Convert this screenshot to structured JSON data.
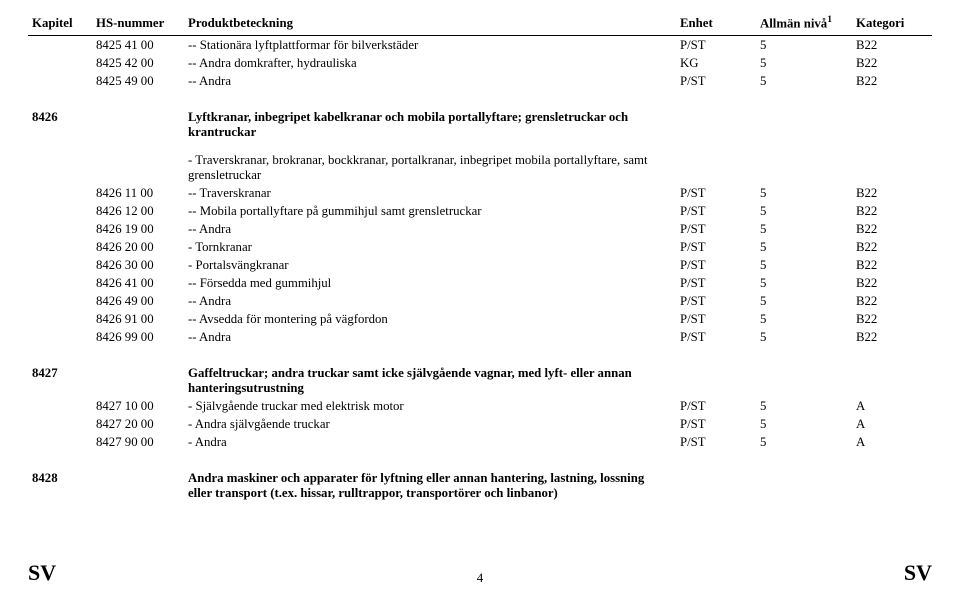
{
  "header": {
    "col1": "Kapitel",
    "col2": "HS-nummer",
    "col3": "Produktbeteckning",
    "col4": "Enhet",
    "col5_a": "Allmän nivå",
    "col5_sup": "1",
    "col6": "Kategori"
  },
  "rows": [
    {
      "c1": "",
      "c2": "8425 41 00",
      "c3": "-- Stationära lyftplattformar för bilverkstäder",
      "c4": "P/ST",
      "c5": "5",
      "c6": "B22"
    },
    {
      "c1": "",
      "c2": "8425 42 00",
      "c3": "-- Andra domkrafter, hydrauliska",
      "c4": "KG",
      "c5": "5",
      "c6": "B22"
    },
    {
      "c1": "",
      "c2": "8425 49 00",
      "c3": "-- Andra",
      "c4": "P/ST",
      "c5": "5",
      "c6": "B22"
    }
  ],
  "group8426_head": {
    "c1": "8426",
    "c3": "Lyftkranar, inbegripet kabelkranar och mobila portallyftare; grensletruckar och krantruckar"
  },
  "group8426_note": "- Traverskranar, brokranar, bockkranar, portalkranar, inbegripet mobila portallyftare, samt grensletruckar",
  "rows8426": [
    {
      "c2": "8426 11 00",
      "c3": "-- Traverskranar",
      "c4": "P/ST",
      "c5": "5",
      "c6": "B22"
    },
    {
      "c2": "8426 12 00",
      "c3": "-- Mobila portallyftare på gummihjul samt grensletruckar",
      "c4": "P/ST",
      "c5": "5",
      "c6": "B22"
    },
    {
      "c2": "8426 19 00",
      "c3": "-- Andra",
      "c4": "P/ST",
      "c5": "5",
      "c6": "B22"
    },
    {
      "c2": "8426 20 00",
      "c3": "- Tornkranar",
      "c4": "P/ST",
      "c5": "5",
      "c6": "B22"
    },
    {
      "c2": "8426 30 00",
      "c3": "- Portalsvängkranar",
      "c4": "P/ST",
      "c5": "5",
      "c6": "B22"
    },
    {
      "c2": "8426 41 00",
      "c3": "-- Försedda med gummihjul",
      "c4": "P/ST",
      "c5": "5",
      "c6": "B22"
    },
    {
      "c2": "8426 49 00",
      "c3": "-- Andra",
      "c4": "P/ST",
      "c5": "5",
      "c6": "B22"
    },
    {
      "c2": "8426 91 00",
      "c3": "-- Avsedda för montering på vägfordon",
      "c4": "P/ST",
      "c5": "5",
      "c6": "B22"
    },
    {
      "c2": "8426 99 00",
      "c3": "-- Andra",
      "c4": "P/ST",
      "c5": "5",
      "c6": "B22"
    }
  ],
  "group8427_head": {
    "c1": "8427",
    "c3": "Gaffeltruckar; andra truckar samt icke självgående vagnar, med lyft- eller annan hanteringsutrustning"
  },
  "rows8427": [
    {
      "c2": "8427 10 00",
      "c3": "- Självgående truckar med elektrisk motor",
      "c4": "P/ST",
      "c5": "5",
      "c6": "A"
    },
    {
      "c2": "8427 20 00",
      "c3": "- Andra självgående truckar",
      "c4": "P/ST",
      "c5": "5",
      "c6": "A"
    },
    {
      "c2": "8427 90 00",
      "c3": "- Andra",
      "c4": "P/ST",
      "c5": "5",
      "c6": "A"
    }
  ],
  "group8428_head": {
    "c1": "8428",
    "c3": "Andra maskiner och apparater för lyftning eller annan hantering, lastning, lossning eller transport (t.ex. hissar, rulltrappor, transportörer och linbanor)"
  },
  "footer": {
    "left": "SV",
    "page": "4",
    "right": "SV"
  }
}
